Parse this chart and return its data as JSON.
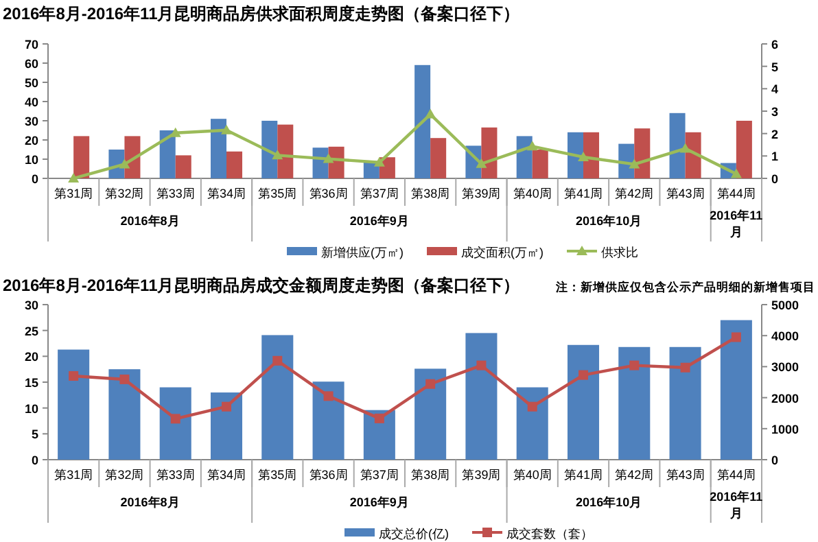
{
  "chart_data": [
    {
      "type": "bar",
      "title": "2016年8月-2016年11月昆明商品房供求面积周度走势图（备案口径下）",
      "categories": [
        "第31周",
        "第32周",
        "第33周",
        "第34周",
        "第35周",
        "第36周",
        "第37周",
        "第38周",
        "第39周",
        "第40周",
        "第41周",
        "第42周",
        "第43周",
        "第44周"
      ],
      "series": [
        {
          "name": "新增供应(万㎡)",
          "color": "#4f81bd",
          "values": [
            null,
            15,
            25,
            31,
            30,
            16,
            9,
            59,
            17,
            22,
            24,
            18,
            34,
            8
          ]
        },
        {
          "name": "成交面积(万㎡)",
          "color": "#c0504d",
          "values": [
            22,
            22,
            12,
            14,
            28,
            16.5,
            11,
            21,
            26.5,
            15,
            24,
            26,
            24,
            30
          ]
        },
        {
          "name": "供求比",
          "type": "line",
          "axis": "y2",
          "color": "#9bbb59",
          "marker": "triangle",
          "values": [
            0,
            0.63,
            2.03,
            2.15,
            1.03,
            0.87,
            0.71,
            2.86,
            0.65,
            1.43,
            0.95,
            0.63,
            1.33,
            0.2
          ]
        }
      ],
      "ylim": [
        0,
        70
      ],
      "yticks": [
        0,
        10,
        20,
        30,
        40,
        50,
        60,
        70
      ],
      "y2lim": [
        0,
        6
      ],
      "y2ticks": [
        0,
        1,
        2,
        3,
        4,
        5,
        6
      ],
      "annotations": [
        "2016年8月",
        "2016年9月",
        "2016年10月",
        "2016年11月"
      ],
      "legend": "bottom",
      "grid": false
    },
    {
      "type": "bar",
      "title": "2016年8月-2016年11月昆明商品房成交金额周度走势图（备案口径下）",
      "categories": [
        "第31周",
        "第32周",
        "第33周",
        "第34周",
        "第35周",
        "第36周",
        "第37周",
        "第38周",
        "第39周",
        "第40周",
        "第41周",
        "第42周",
        "第43周",
        "第44周"
      ],
      "series": [
        {
          "name": "成交总价(亿)",
          "color": "#4f81bd",
          "values": [
            21.3,
            17.5,
            14,
            13,
            24.1,
            15.1,
            9.6,
            17.6,
            24.5,
            14,
            22.2,
            21.8,
            21.8,
            27
          ]
        },
        {
          "name": "成交套数（套）",
          "type": "line",
          "axis": "y2",
          "color": "#c0504d",
          "marker": "square",
          "values": [
            2700,
            2590,
            1320,
            1710,
            3190,
            2050,
            1330,
            2440,
            3040,
            1710,
            2730,
            3040,
            2970,
            3950
          ]
        }
      ],
      "ylim": [
        0,
        30
      ],
      "yticks": [
        0,
        5,
        10,
        15,
        20,
        25,
        30
      ],
      "y2lim": [
        0,
        5000
      ],
      "y2ticks": [
        0,
        1000,
        2000,
        3000,
        4000,
        5000
      ],
      "annotations": [
        "注：新增供应仅包含公示产品明细的新增售项目",
        "2016年8月",
        "2016年9月",
        "2016年10月",
        "2016年11月"
      ],
      "legend": "bottom",
      "grid": false
    }
  ]
}
